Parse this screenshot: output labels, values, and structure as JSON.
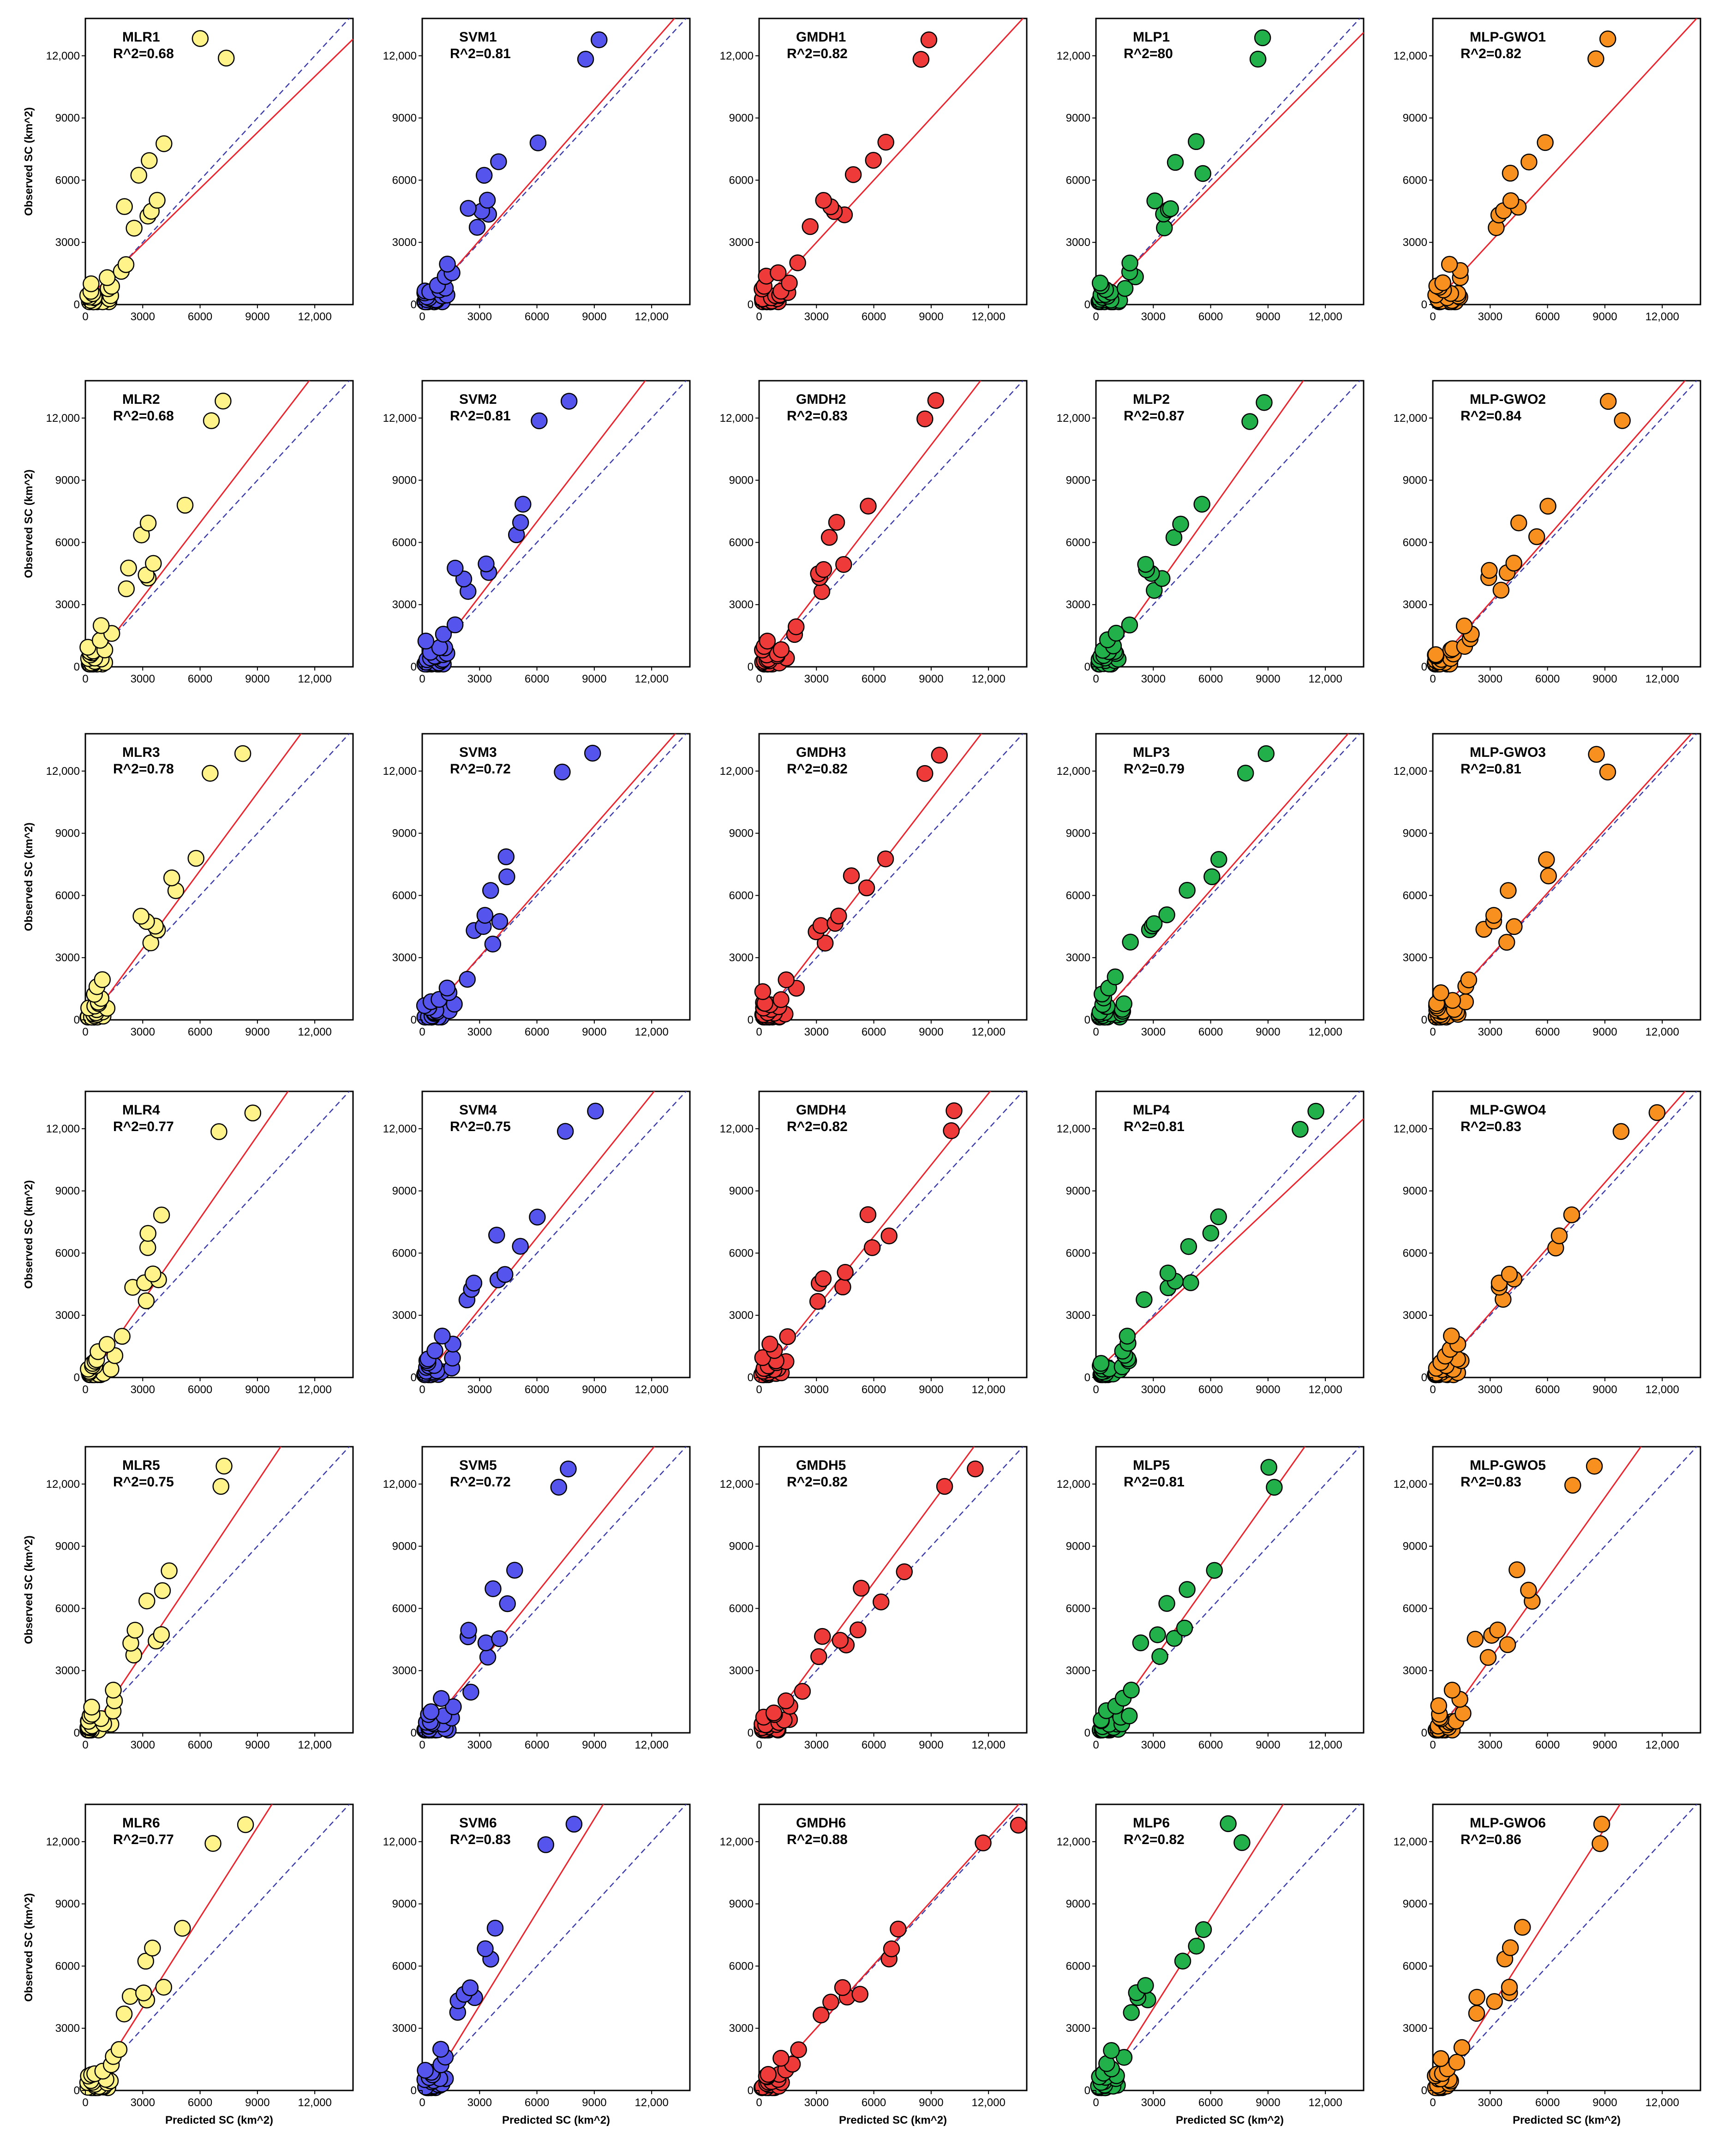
{
  "figure": {
    "xlabel": "Predicted SC (km^2)",
    "ylabel": "Observed SC (km^2)"
  },
  "chart_data": {
    "type": "scatter",
    "grid": false,
    "xticks": [
      "0",
      "3000",
      "6000",
      "9000",
      "12,000"
    ],
    "yticks": [
      "0",
      "3000",
      "6000",
      "9000",
      "12,000"
    ],
    "xlim": [
      0,
      14000
    ],
    "ylim": [
      0,
      13800
    ],
    "observed": [
      0,
      0,
      20,
      40,
      60,
      80,
      100,
      140,
      170,
      200,
      240,
      280,
      320,
      360,
      400,
      450,
      500,
      600,
      680,
      760,
      850,
      1000,
      1300,
      1600,
      2000,
      3700,
      4300,
      4500,
      4700,
      5000,
      6300,
      6900,
      7800,
      11900,
      12800
    ],
    "models": [
      {
        "name": "MLR",
        "color": "#fff38a",
        "panels": [
          {
            "title": "MLR1",
            "r2_label": "R^2=0.68",
            "slope": 0.9,
            "intercept": 200,
            "scale": 0.55,
            "noise": 1150
          },
          {
            "title": "MLR2",
            "r2_label": "R^2=0.68",
            "slope": 1.2,
            "intercept": -250,
            "scale": 0.5,
            "noise": 1100
          },
          {
            "title": "MLR3",
            "r2_label": "R^2=0.78",
            "slope": 1.25,
            "intercept": -300,
            "scale": 0.6,
            "noise": 1000
          },
          {
            "title": "MLR4",
            "r2_label": "R^2=0.77",
            "slope": 1.33,
            "intercept": -300,
            "scale": 0.6,
            "noise": 1050
          },
          {
            "title": "MLR5",
            "r2_label": "R^2=0.75",
            "slope": 1.38,
            "intercept": -300,
            "scale": 0.6,
            "noise": 1100
          },
          {
            "title": "MLR6",
            "r2_label": "R^2=0.77",
            "slope": 1.45,
            "intercept": -350,
            "scale": 0.58,
            "noise": 1000
          }
        ]
      },
      {
        "name": "SVM",
        "color": "#5555ee",
        "panels": [
          {
            "title": "SVM1",
            "r2_label": "R^2=0.81",
            "slope": 1.05,
            "intercept": -50,
            "scale": 0.68,
            "noise": 1050
          },
          {
            "title": "SVM2",
            "r2_label": "R^2=0.81",
            "slope": 1.2,
            "intercept": -200,
            "scale": 0.58,
            "noise": 1050
          },
          {
            "title": "SVM3",
            "r2_label": "R^2=0.72",
            "slope": 1.05,
            "intercept": -100,
            "scale": 0.65,
            "noise": 1250
          },
          {
            "title": "SVM4",
            "r2_label": "R^2=0.75",
            "slope": 1.15,
            "intercept": -150,
            "scale": 0.62,
            "noise": 1200
          },
          {
            "title": "SVM5",
            "r2_label": "R^2=0.72",
            "slope": 1.15,
            "intercept": -150,
            "scale": 0.68,
            "noise": 1300
          },
          {
            "title": "SVM6",
            "r2_label": "R^2=0.83",
            "slope": 1.5,
            "intercept": -400,
            "scale": 0.55,
            "noise": 850
          }
        ]
      },
      {
        "name": "GMDH",
        "color": "#ef3a3a",
        "panels": [
          {
            "title": "GMDH1",
            "r2_label": "R^2=0.82",
            "slope": 1.0,
            "intercept": 0,
            "scale": 0.74,
            "noise": 1050
          },
          {
            "title": "GMDH2",
            "r2_label": "R^2=0.83",
            "slope": 1.2,
            "intercept": -100,
            "scale": 0.68,
            "noise": 1000
          },
          {
            "title": "GMDH3",
            "r2_label": "R^2=0.82",
            "slope": 1.2,
            "intercept": -150,
            "scale": 0.72,
            "noise": 1050
          },
          {
            "title": "GMDH4",
            "r2_label": "R^2=0.82",
            "slope": 1.15,
            "intercept": -100,
            "scale": 0.82,
            "noise": 1050
          },
          {
            "title": "GMDH5",
            "r2_label": "R^2=0.82",
            "slope": 1.25,
            "intercept": -250,
            "scale": 0.85,
            "noise": 1000
          },
          {
            "title": "GMDH6",
            "r2_label": "R^2=0.88",
            "slope": 1.02,
            "intercept": -50,
            "scale": 0.98,
            "noise": 800
          }
        ]
      },
      {
        "name": "MLP",
        "color": "#22b04a",
        "panels": [
          {
            "title": "MLP1",
            "r2_label": "R^2=80",
            "slope": 0.93,
            "intercept": 100,
            "scale": 0.7,
            "noise": 1050
          },
          {
            "title": "MLP2",
            "r2_label": "R^2=0.87",
            "slope": 1.3,
            "intercept": -300,
            "scale": 0.62,
            "noise": 850
          },
          {
            "title": "MLP3",
            "r2_label": "R^2=0.79",
            "slope": 1.05,
            "intercept": -50,
            "scale": 0.72,
            "noise": 1100
          },
          {
            "title": "MLP4",
            "r2_label": "R^2=0.81",
            "slope": 0.87,
            "intercept": 300,
            "scale": 0.88,
            "noise": 1050
          },
          {
            "title": "MLP5",
            "r2_label": "R^2=0.81",
            "slope": 1.3,
            "intercept": -400,
            "scale": 0.68,
            "noise": 1050
          },
          {
            "title": "MLP6",
            "r2_label": "R^2=0.82",
            "slope": 1.45,
            "intercept": -400,
            "scale": 0.6,
            "noise": 1000
          }
        ]
      },
      {
        "name": "MLP-GWO",
        "color": "#f7901e",
        "panels": [
          {
            "title": "MLP-GWO1",
            "r2_label": "R^2=0.82",
            "slope": 1.0,
            "intercept": 0,
            "scale": 0.72,
            "noise": 1050
          },
          {
            "title": "MLP-GWO2",
            "r2_label": "R^2=0.84",
            "slope": 1.05,
            "intercept": -50,
            "scale": 0.75,
            "noise": 950
          },
          {
            "title": "MLP-GWO3",
            "r2_label": "R^2=0.81",
            "slope": 1.02,
            "intercept": 0,
            "scale": 0.74,
            "noise": 1050
          },
          {
            "title": "MLP-GWO4",
            "r2_label": "R^2=0.83",
            "slope": 1.05,
            "intercept": -50,
            "scale": 0.88,
            "noise": 1000
          },
          {
            "title": "MLP-GWO5",
            "r2_label": "R^2=0.83",
            "slope": 1.3,
            "intercept": -350,
            "scale": 0.66,
            "noise": 1000
          },
          {
            "title": "MLP-GWO6",
            "r2_label": "R^2=0.86",
            "slope": 1.45,
            "intercept": -400,
            "scale": 0.65,
            "noise": 900
          }
        ]
      }
    ]
  }
}
